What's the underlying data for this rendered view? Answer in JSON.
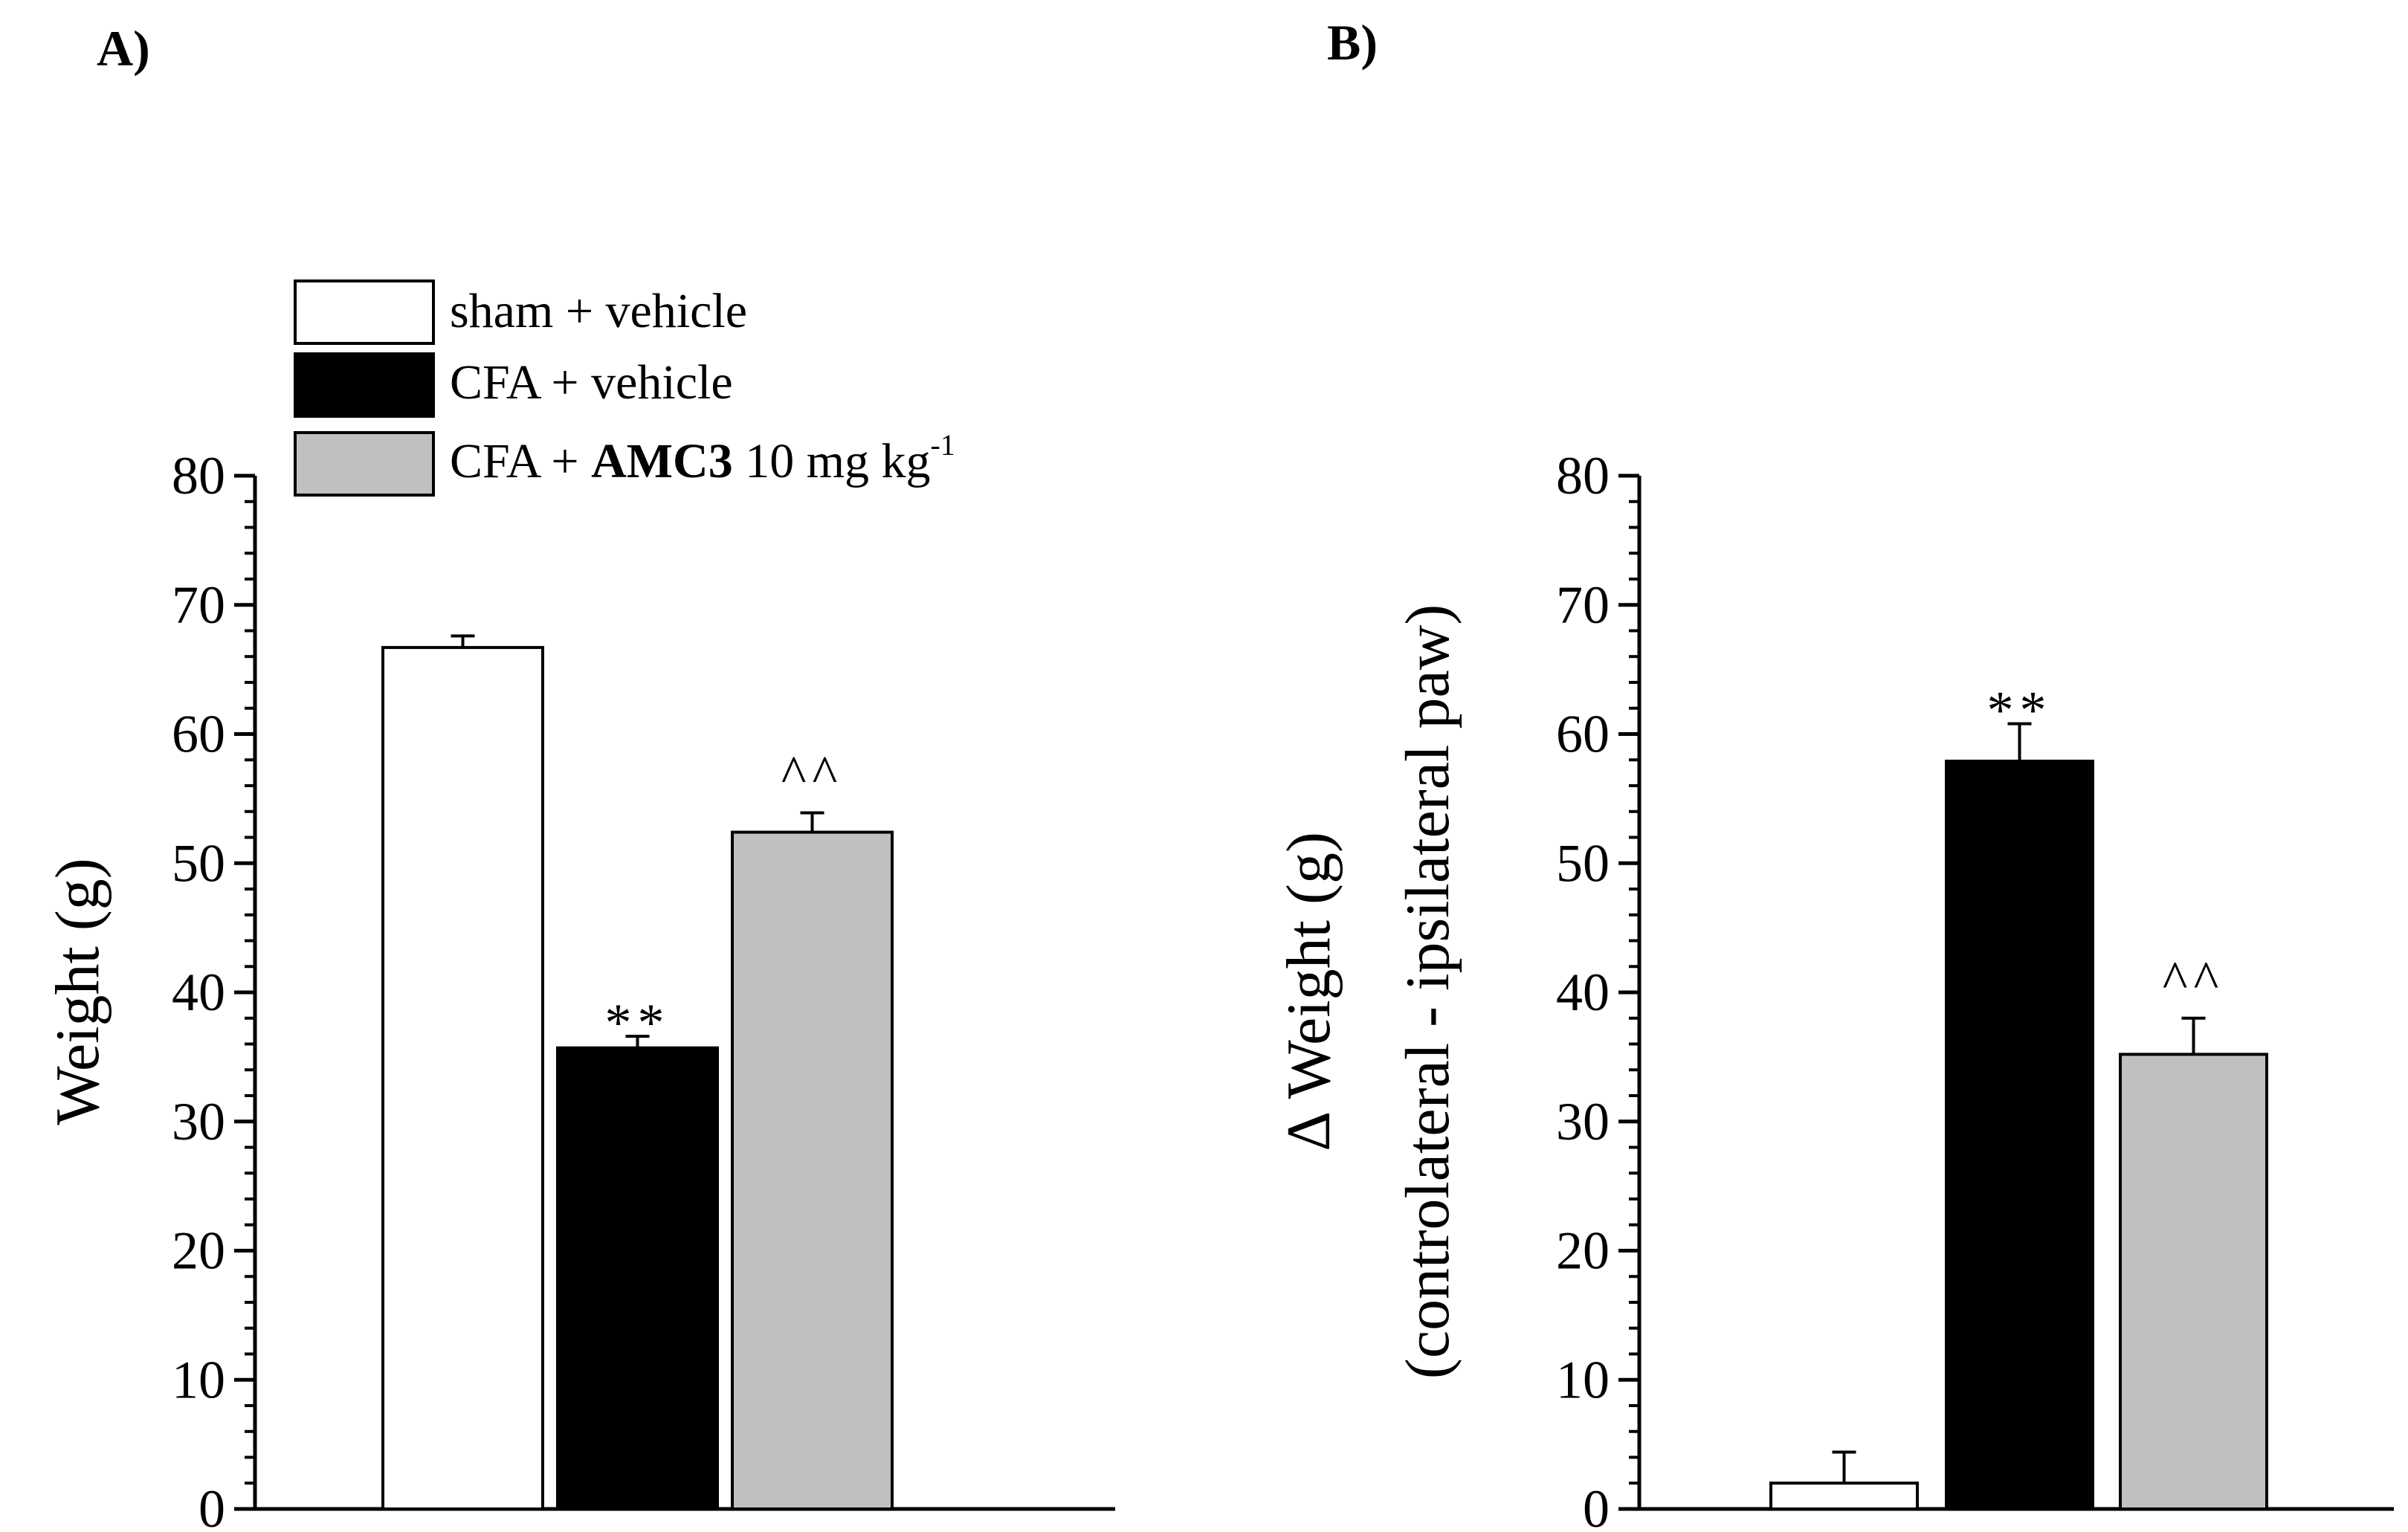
{
  "panels": {
    "a": {
      "label": "A)"
    },
    "b": {
      "label": "B)"
    }
  },
  "legend": {
    "items": [
      {
        "label": "sham + vehicle",
        "color": "#ffffff"
      },
      {
        "label_prefix": "CFA + vehicle",
        "color": "#000000"
      },
      {
        "label_prefix": "CFA + ",
        "label_bold": "AMC3",
        "label_suffix": " 10 mg kg",
        "label_sup": "-1",
        "color": "#c0c0c0"
      }
    ]
  },
  "chart_data": [
    {
      "type": "bar",
      "panel": "A)",
      "categories": [
        "sham + vehicle",
        "CFA + vehicle",
        "CFA + AMC3 10 mg kg-1"
      ],
      "values": [
        66.7,
        35.7,
        52.4
      ],
      "errors": [
        0.9,
        0.9,
        1.5
      ],
      "colors": [
        "#ffffff",
        "#000000",
        "#c0c0c0"
      ],
      "annotations": [
        "",
        "**",
        "^^"
      ],
      "ylabel": "Weight (g)",
      "xlabel": "",
      "ylim": [
        0,
        80
      ],
      "yticks": [
        0,
        10,
        20,
        30,
        40,
        50,
        60,
        70,
        80
      ]
    },
    {
      "type": "bar",
      "panel": "B)",
      "categories": [
        "sham + vehicle",
        "CFA + vehicle",
        "CFA + AMC3 10 mg kg-1"
      ],
      "values": [
        2.0,
        57.9,
        35.2
      ],
      "errors": [
        2.4,
        2.9,
        2.8
      ],
      "colors": [
        "#ffffff",
        "#000000",
        "#c0c0c0"
      ],
      "annotations": [
        "",
        "**",
        "^^"
      ],
      "ylabel_line1": "Δ Weight (g)",
      "ylabel_line2": "(controlateral - ipsilateral paw)",
      "xlabel": "",
      "ylim": [
        0,
        80
      ],
      "yticks": [
        0,
        10,
        20,
        30,
        40,
        50,
        60,
        70,
        80
      ]
    }
  ]
}
